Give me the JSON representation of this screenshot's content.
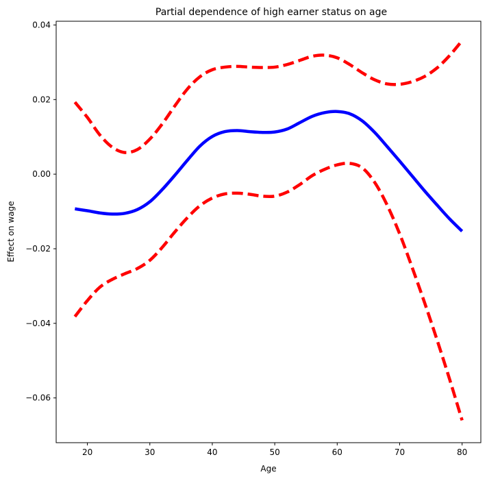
{
  "chart_data": {
    "type": "line",
    "title": "Partial dependence of high earner status on age",
    "xlabel": "Age",
    "ylabel": "Effect on wage",
    "xlim": [
      15,
      83
    ],
    "ylim": [
      -0.072,
      0.041
    ],
    "xticks": [
      20,
      30,
      40,
      50,
      60,
      70,
      80
    ],
    "xtick_labels": [
      "20",
      "30",
      "40",
      "50",
      "60",
      "70",
      "80"
    ],
    "yticks": [
      0.04,
      0.02,
      0.0,
      -0.02,
      -0.04,
      -0.06
    ],
    "ytick_labels": [
      "0.04",
      "0.02",
      "0.00",
      "−0.02",
      "−0.04",
      "−0.06"
    ],
    "grid": false,
    "legend": "none",
    "series": [
      {
        "role": "estimate",
        "color": "#0000ff",
        "style": "solid",
        "x": [
          18,
          20,
          22,
          24,
          26,
          28,
          30,
          32,
          34,
          36,
          38,
          40,
          42,
          44,
          46,
          48,
          50,
          52,
          54,
          56,
          58,
          60,
          62,
          64,
          66,
          68,
          70,
          72,
          74,
          76,
          78,
          80
        ],
        "y": [
          -0.0093,
          -0.0098,
          -0.0104,
          -0.0107,
          -0.0105,
          -0.0095,
          -0.0074,
          -0.0041,
          -0.0003,
          0.0037,
          0.0075,
          0.0101,
          0.0114,
          0.0117,
          0.0114,
          0.0112,
          0.0113,
          0.0121,
          0.0138,
          0.0155,
          0.0165,
          0.0168,
          0.0162,
          0.0143,
          0.0112,
          0.0074,
          0.0035,
          -0.0005,
          -0.0045,
          -0.0083,
          -0.012,
          -0.0153
        ]
      },
      {
        "role": "upper-bound",
        "color": "#ff0000",
        "style": "dashed",
        "x": [
          18,
          20,
          22,
          24,
          26,
          28,
          30,
          32,
          34,
          36,
          38,
          40,
          42,
          44,
          46,
          48,
          50,
          52,
          54,
          56,
          58,
          60,
          62,
          64,
          66,
          68,
          70,
          72,
          74,
          76,
          78,
          80
        ],
        "y": [
          0.0193,
          0.0152,
          0.0105,
          0.0072,
          0.0058,
          0.0066,
          0.0094,
          0.0135,
          0.0183,
          0.0228,
          0.0261,
          0.028,
          0.0287,
          0.0289,
          0.0287,
          0.0286,
          0.0287,
          0.0294,
          0.0305,
          0.0316,
          0.0319,
          0.0312,
          0.0294,
          0.0272,
          0.0253,
          0.0242,
          0.0241,
          0.0248,
          0.0262,
          0.0285,
          0.0318,
          0.0358
        ]
      },
      {
        "role": "lower-bound",
        "color": "#ff0000",
        "style": "dashed",
        "x": [
          18,
          20,
          22,
          24,
          26,
          28,
          30,
          32,
          34,
          36,
          38,
          40,
          42,
          44,
          46,
          48,
          50,
          52,
          54,
          56,
          58,
          60,
          62,
          64,
          66,
          68,
          70,
          72,
          74,
          76,
          78,
          80
        ],
        "y": [
          -0.0382,
          -0.0339,
          -0.0303,
          -0.0282,
          -0.0267,
          -0.0253,
          -0.0231,
          -0.0196,
          -0.0155,
          -0.0117,
          -0.0085,
          -0.0064,
          -0.0053,
          -0.0051,
          -0.0054,
          -0.0059,
          -0.0059,
          -0.0048,
          -0.0028,
          -0.0004,
          0.0013,
          0.0025,
          0.0029,
          0.0017,
          -0.0022,
          -0.0083,
          -0.016,
          -0.025,
          -0.0345,
          -0.0445,
          -0.055,
          -0.066
        ]
      }
    ]
  }
}
